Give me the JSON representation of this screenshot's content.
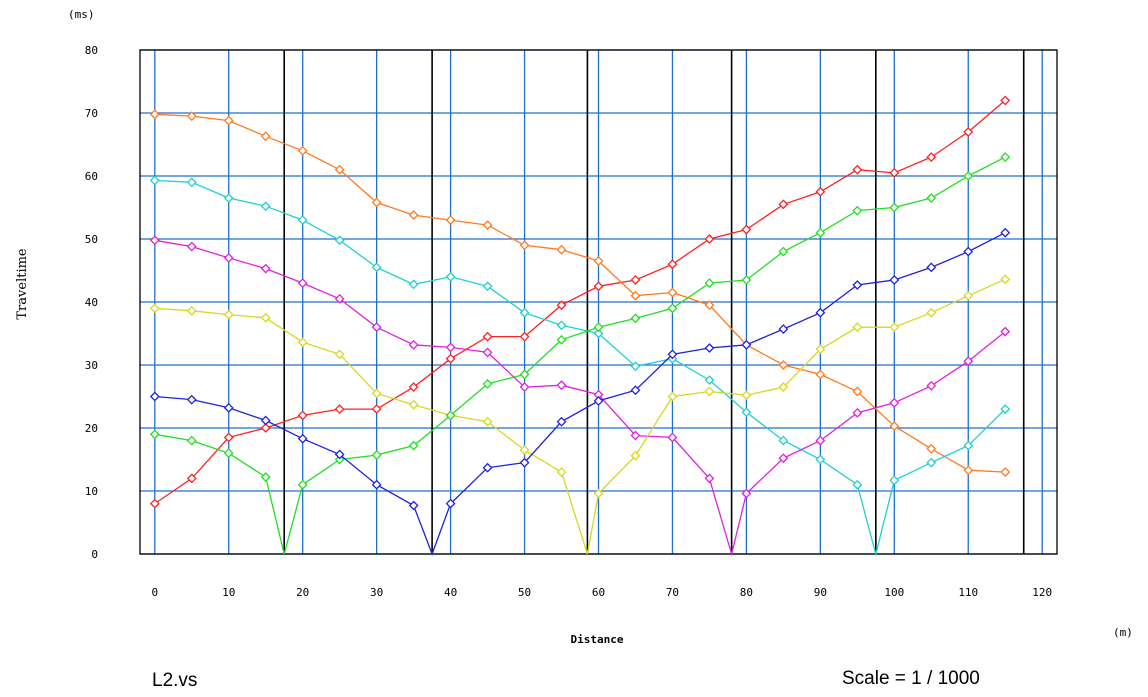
{
  "file_label": "L2.vs",
  "scale_label": "Scale = 1 / 1000",
  "chart_data": {
    "type": "line",
    "xlabel": "Distance",
    "ylabel": "Traveltime",
    "x_unit": "(m)",
    "y_unit": "(ms)",
    "xlim": [
      -2,
      122
    ],
    "ylim": [
      0,
      80
    ],
    "x_ticks": [
      0,
      10,
      20,
      30,
      40,
      50,
      60,
      70,
      80,
      90,
      100,
      110,
      120
    ],
    "y_ticks": [
      0,
      10,
      20,
      30,
      40,
      50,
      60,
      70,
      80
    ],
    "grid": true,
    "shot_positions": [
      17.5,
      37.5,
      58.5,
      78,
      97.5,
      117.5
    ],
    "colors": {
      "grid_blue": "#1f6fd0",
      "shot_black": "#000000"
    },
    "series": [
      {
        "color": "#ff2020",
        "points": [
          [
            0,
            8
          ],
          [
            5,
            12
          ],
          [
            10,
            18.5
          ],
          [
            15,
            20
          ],
          [
            20,
            22
          ],
          [
            25,
            23
          ],
          [
            30,
            23
          ],
          [
            35,
            26.5
          ],
          [
            40,
            31
          ],
          [
            45,
            34.5
          ],
          [
            50,
            34.5
          ],
          [
            55,
            39.5
          ],
          [
            60,
            42.5
          ],
          [
            65,
            43.5
          ],
          [
            70,
            46
          ],
          [
            75,
            50
          ],
          [
            80,
            51.5
          ],
          [
            85,
            55.5
          ],
          [
            90,
            57.5
          ],
          [
            95,
            61
          ],
          [
            100,
            60.5
          ],
          [
            105,
            63
          ],
          [
            110,
            67
          ],
          [
            115,
            72
          ]
        ]
      },
      {
        "color": "#ff7a20",
        "points": [
          [
            0,
            69.8
          ],
          [
            5,
            69.5
          ],
          [
            10,
            68.8
          ],
          [
            15,
            66.3
          ],
          [
            20,
            64
          ],
          [
            25,
            61
          ],
          [
            30,
            55.8
          ],
          [
            35,
            53.8
          ],
          [
            40,
            53
          ],
          [
            45,
            52.2
          ],
          [
            50,
            49
          ],
          [
            55,
            48.3
          ],
          [
            60,
            46.5
          ],
          [
            65,
            41
          ],
          [
            70,
            41.5
          ],
          [
            75,
            39.5
          ],
          [
            80,
            33.2
          ],
          [
            85,
            30
          ],
          [
            90,
            28.5
          ],
          [
            95,
            25.8
          ],
          [
            100,
            20.3
          ],
          [
            105,
            16.7
          ],
          [
            110,
            13.3
          ],
          [
            115,
            13
          ]
        ]
      },
      {
        "color": "#20d0d0",
        "points": [
          [
            0,
            59.3
          ],
          [
            5,
            59
          ],
          [
            10,
            56.5
          ],
          [
            15,
            55.2
          ],
          [
            20,
            53
          ],
          [
            25,
            49.8
          ],
          [
            30,
            45.5
          ],
          [
            35,
            42.8
          ],
          [
            40,
            44
          ],
          [
            45,
            42.5
          ],
          [
            50,
            38.3
          ],
          [
            55,
            36.3
          ],
          [
            60,
            35
          ],
          [
            65,
            29.8
          ],
          [
            70,
            31
          ],
          [
            75,
            27.6
          ],
          [
            80,
            22.5
          ],
          [
            85,
            18
          ],
          [
            90,
            15
          ],
          [
            95,
            11
          ],
          [
            97.5,
            0
          ],
          [
            100,
            11.7
          ],
          [
            105,
            14.5
          ],
          [
            110,
            17.2
          ],
          [
            115,
            23
          ]
        ]
      },
      {
        "color": "#e020e0",
        "points": [
          [
            0,
            49.8
          ],
          [
            5,
            48.8
          ],
          [
            10,
            47
          ],
          [
            15,
            45.3
          ],
          [
            20,
            43
          ],
          [
            25,
            40.5
          ],
          [
            30,
            36
          ],
          [
            35,
            33.2
          ],
          [
            40,
            32.8
          ],
          [
            45,
            32
          ],
          [
            50,
            26.5
          ],
          [
            55,
            26.8
          ],
          [
            60,
            25.3
          ],
          [
            65,
            18.8
          ],
          [
            70,
            18.5
          ],
          [
            75,
            12
          ],
          [
            78,
            0
          ],
          [
            80,
            9.6
          ],
          [
            85,
            15.2
          ],
          [
            90,
            18
          ],
          [
            95,
            22.4
          ],
          [
            100,
            24
          ],
          [
            105,
            26.7
          ],
          [
            110,
            30.6
          ],
          [
            115,
            35.3
          ]
        ]
      },
      {
        "color": "#d8d820",
        "points": [
          [
            0,
            39
          ],
          [
            5,
            38.6
          ],
          [
            10,
            38
          ],
          [
            15,
            37.5
          ],
          [
            20,
            33.6
          ],
          [
            25,
            31.7
          ],
          [
            30,
            25.5
          ],
          [
            35,
            23.7
          ],
          [
            40,
            22
          ],
          [
            45,
            21
          ],
          [
            50,
            16.5
          ],
          [
            55,
            13
          ],
          [
            58.5,
            0
          ],
          [
            60,
            9.6
          ],
          [
            65,
            15.6
          ],
          [
            70,
            25
          ],
          [
            75,
            25.8
          ],
          [
            80,
            25.2
          ],
          [
            85,
            26.5
          ],
          [
            90,
            32.5
          ],
          [
            95,
            36
          ],
          [
            100,
            36
          ],
          [
            105,
            38.3
          ],
          [
            110,
            41
          ],
          [
            115,
            43.6
          ]
        ]
      },
      {
        "color": "#20e020",
        "points": [
          [
            0,
            19
          ],
          [
            5,
            18
          ],
          [
            10,
            16
          ],
          [
            15,
            12.2
          ],
          [
            17.5,
            0
          ],
          [
            20,
            11
          ],
          [
            25,
            15
          ],
          [
            30,
            15.7
          ],
          [
            35,
            17.2
          ],
          [
            40,
            22
          ],
          [
            45,
            27
          ],
          [
            50,
            28.5
          ],
          [
            55,
            34
          ],
          [
            60,
            36
          ],
          [
            65,
            37.4
          ],
          [
            70,
            39
          ],
          [
            75,
            43
          ],
          [
            80,
            43.5
          ],
          [
            85,
            48
          ],
          [
            90,
            51
          ],
          [
            95,
            54.5
          ],
          [
            100,
            55
          ],
          [
            105,
            56.5
          ],
          [
            110,
            60
          ],
          [
            115,
            63
          ]
        ]
      },
      {
        "color": "#2020e0",
        "points": [
          [
            0,
            25
          ],
          [
            5,
            24.5
          ],
          [
            10,
            23.2
          ],
          [
            15,
            21.2
          ],
          [
            20,
            18.3
          ],
          [
            25,
            15.8
          ],
          [
            30,
            11
          ],
          [
            35,
            7.7
          ],
          [
            37.5,
            0
          ],
          [
            40,
            8
          ],
          [
            45,
            13.7
          ],
          [
            50,
            14.5
          ],
          [
            55,
            21
          ],
          [
            60,
            24.3
          ],
          [
            65,
            26
          ],
          [
            70,
            31.7
          ],
          [
            75,
            32.7
          ],
          [
            80,
            33.2
          ],
          [
            85,
            35.7
          ],
          [
            90,
            38.3
          ],
          [
            95,
            42.7
          ],
          [
            100,
            43.5
          ],
          [
            105,
            45.5
          ],
          [
            110,
            48
          ],
          [
            115,
            51
          ]
        ]
      }
    ]
  }
}
